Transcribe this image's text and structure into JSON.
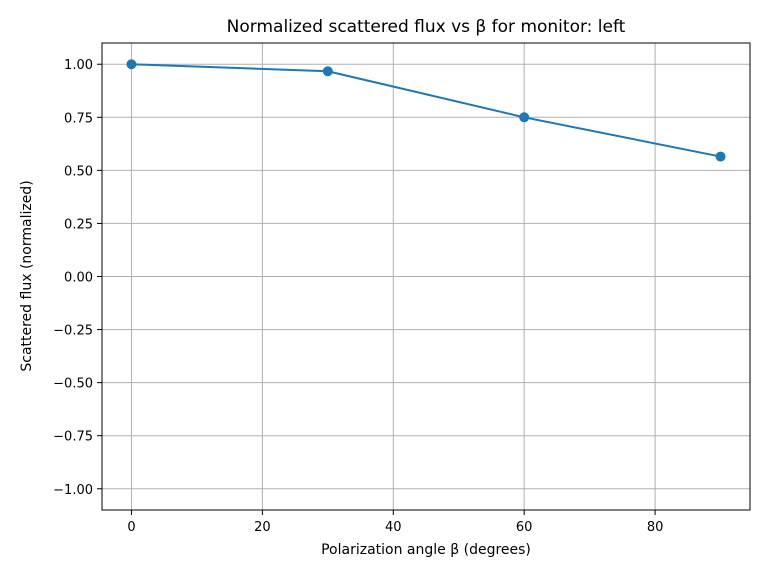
{
  "chart_data": {
    "type": "line",
    "title": "Normalized scattered flux vs β for monitor: left",
    "xlabel": "Polarization angle β (degrees)",
    "ylabel": "Scattered flux (normalized)",
    "xlim": [
      -4.5,
      94.5
    ],
    "ylim": [
      -1.1,
      1.1
    ],
    "xticks": [
      0,
      20,
      40,
      60,
      80
    ],
    "xtick_labels": [
      "0",
      "20",
      "40",
      "60",
      "80"
    ],
    "yticks": [
      1.0,
      0.75,
      0.5,
      0.25,
      0.0,
      -0.25,
      -0.5,
      -0.75,
      -1.0
    ],
    "ytick_labels": [
      "1.00",
      "0.75",
      "0.50",
      "0.25",
      "0.00",
      "−0.25",
      "−0.50",
      "−0.75",
      "−1.00"
    ],
    "grid": true,
    "marker": "circle",
    "color": "#1f77b4",
    "series": [
      {
        "x": [
          0,
          30,
          60,
          90
        ],
        "values": [
          1.0,
          0.967,
          0.75,
          0.565
        ]
      }
    ]
  }
}
